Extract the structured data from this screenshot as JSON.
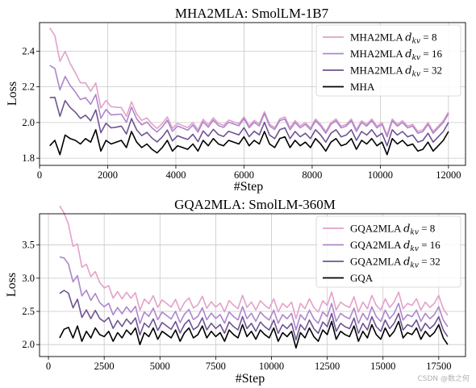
{
  "watermark": "CSDN @数之何",
  "colors": {
    "dkv8": "#e3a1c9",
    "dkv16": "#ad86cc",
    "dkv32": "#6e5393",
    "base": "#000000",
    "grid": "#c8c8c8"
  },
  "chart_data": [
    {
      "type": "line",
      "title": "MHA2MLA: SmolLM-1B7",
      "xlabel": "#Step",
      "ylabel": "Loss",
      "xlim": [
        0,
        12500
      ],
      "ylim": [
        1.76,
        2.56
      ],
      "xticks": [
        0,
        2000,
        4000,
        6000,
        8000,
        10000,
        12000
      ],
      "yticks": [
        1.8,
        2.0,
        2.2,
        2.4
      ],
      "ytick_labels": [
        "1.8",
        "2.0",
        "2.2",
        "2.4"
      ],
      "grid": true,
      "legend_position": "top-right",
      "legend_offsets": [
        0.11,
        0.1,
        0.05,
        0
      ],
      "series": [
        {
          "name": "MHA2MLA",
          "sub": "kv",
          "eq": " = 8",
          "color": "#e3a1c9"
        },
        {
          "name": "MHA2MLA",
          "sub": "kv",
          "eq": " = 16",
          "color": "#ad86cc"
        },
        {
          "name": "MHA2MLA",
          "sub": "kv",
          "eq": " = 32",
          "color": "#6e5393"
        },
        {
          "name": "MHA",
          "sub": "",
          "eq": "",
          "color": "#000000"
        }
      ],
      "x": [
        300,
        450,
        600,
        750,
        900,
        1050,
        1200,
        1350,
        1500,
        1650,
        1800,
        1950,
        2100,
        2250,
        2400,
        2550,
        2700,
        2850,
        3000,
        3150,
        3300,
        3450,
        3600,
        3750,
        3900,
        4050,
        4200,
        4350,
        4500,
        4650,
        4800,
        4950,
        5100,
        5250,
        5400,
        5550,
        5700,
        5850,
        6000,
        6150,
        6300,
        6450,
        6600,
        6750,
        6900,
        7050,
        7200,
        7350,
        7500,
        7650,
        7800,
        7950,
        8100,
        8250,
        8400,
        8550,
        8700,
        8850,
        9000,
        9150,
        9300,
        9450,
        9600,
        9750,
        9900,
        10050,
        10200,
        10350,
        10500,
        10650,
        10800,
        10950,
        11100,
        11250,
        11400,
        11550,
        11700,
        11850,
        12000
      ],
      "base": [
        1.87,
        1.9,
        1.82,
        1.93,
        1.91,
        1.9,
        1.88,
        1.91,
        1.89,
        1.96,
        1.84,
        1.9,
        1.88,
        1.89,
        1.9,
        1.86,
        1.95,
        1.89,
        1.86,
        1.88,
        1.85,
        1.83,
        1.86,
        1.9,
        1.84,
        1.87,
        1.86,
        1.85,
        1.88,
        1.84,
        1.9,
        1.87,
        1.91,
        1.88,
        1.87,
        1.9,
        1.89,
        1.88,
        1.92,
        1.87,
        1.9,
        1.88,
        1.95,
        1.88,
        1.86,
        1.91,
        1.92,
        1.86,
        1.9,
        1.87,
        1.89,
        1.86,
        1.91,
        1.88,
        1.84,
        1.89,
        1.91,
        1.87,
        1.88,
        1.91,
        1.85,
        1.9,
        1.88,
        1.91,
        1.87,
        1.89,
        1.82,
        1.91,
        1.88,
        1.9,
        1.87,
        1.88,
        1.84,
        1.85,
        1.89,
        1.84,
        1.87,
        1.9,
        1.95
      ]
    },
    {
      "type": "line",
      "title": "GQA2MLA: SmolLM-360M",
      "xlabel": "#Step",
      "ylabel": "Loss",
      "xlim": [
        -400,
        18700
      ],
      "ylim": [
        1.82,
        3.97
      ],
      "xticks": [
        0,
        2500,
        5000,
        7500,
        10000,
        12500,
        15000,
        17500
      ],
      "yticks": [
        2.0,
        2.5,
        3.0,
        3.5
      ],
      "ytick_labels": [
        "2.0",
        "2.5",
        "3.0",
        "3.5"
      ],
      "grid": true,
      "legend_position": "top-right",
      "legend_offsets": [
        0.44,
        0.27,
        0.12,
        0
      ],
      "series": [
        {
          "name": "GQA2MLA",
          "sub": "kv",
          "eq": " = 8",
          "color": "#e3a1c9"
        },
        {
          "name": "GQA2MLA",
          "sub": "kv",
          "eq": " = 16",
          "color": "#ad86cc"
        },
        {
          "name": "GQA2MLA",
          "sub": "kv",
          "eq": " = 32",
          "color": "#6e5393"
        },
        {
          "name": "GQA",
          "sub": "",
          "eq": "",
          "color": "#000000"
        }
      ],
      "x": [
        500,
        700,
        900,
        1100,
        1300,
        1500,
        1700,
        1900,
        2100,
        2300,
        2500,
        2700,
        2900,
        3100,
        3300,
        3500,
        3700,
        3900,
        4100,
        4300,
        4500,
        4700,
        4900,
        5100,
        5300,
        5500,
        5700,
        5900,
        6100,
        6300,
        6500,
        6700,
        6900,
        7100,
        7300,
        7500,
        7700,
        7900,
        8100,
        8300,
        8500,
        8700,
        8900,
        9100,
        9300,
        9500,
        9700,
        9900,
        10100,
        10300,
        10500,
        10700,
        10900,
        11100,
        11300,
        11500,
        11700,
        11900,
        12100,
        12300,
        12500,
        12700,
        12900,
        13100,
        13300,
        13500,
        13700,
        13900,
        14100,
        14300,
        14500,
        14700,
        14900,
        15100,
        15300,
        15500,
        15700,
        15900,
        16100,
        16300,
        16500,
        16700,
        16900,
        17100,
        17300,
        17500,
        17700,
        17900
      ],
      "base_start": [
        2.1,
        2.23,
        2.26,
        2.1,
        2.28,
        2.05
      ],
      "base": [
        2.1,
        2.23,
        2.26,
        2.1,
        2.28,
        2.05,
        2.2,
        2.1,
        2.25,
        2.15,
        2.12,
        2.2,
        2.05,
        2.18,
        2.1,
        2.22,
        2.15,
        2.25,
        2.0,
        2.18,
        2.12,
        2.25,
        2.08,
        2.2,
        2.15,
        2.1,
        2.22,
        2.05,
        2.18,
        2.25,
        2.1,
        2.15,
        2.28,
        2.1,
        2.2,
        2.12,
        2.18,
        2.05,
        2.22,
        2.15,
        2.1,
        2.3,
        2.12,
        2.2,
        2.08,
        2.22,
        2.15,
        2.1,
        2.25,
        2.05,
        2.18,
        2.12,
        2.2,
        1.95,
        2.18,
        2.1,
        2.25,
        2.12,
        2.05,
        2.22,
        2.15,
        2.35,
        2.08,
        2.2,
        2.15,
        2.12,
        2.28,
        2.05,
        2.2,
        2.1,
        2.3,
        2.15,
        2.08,
        2.25,
        2.12,
        2.2,
        2.35,
        2.1,
        2.18,
        2.15,
        2.25,
        2.08,
        2.2,
        2.12,
        2.18,
        2.3,
        2.1,
        2.0
      ]
    }
  ]
}
